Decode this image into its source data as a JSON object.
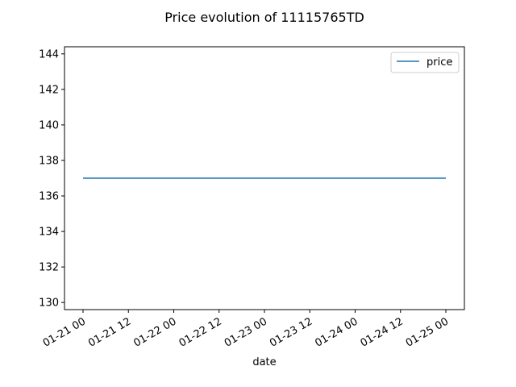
{
  "chart_data": {
    "type": "line",
    "title": "Price evolution of 11115765TD",
    "xlabel": "date",
    "ylabel": "",
    "x": [
      "2024-01-21 00:00",
      "2024-01-25 00:00"
    ],
    "series": [
      {
        "name": "price",
        "values": [
          137,
          137
        ],
        "color": "#1f77b4"
      }
    ],
    "ylim": [
      129.6,
      144.4
    ],
    "yticks": [
      130,
      132,
      134,
      136,
      138,
      140,
      142,
      144
    ],
    "xticks": [
      {
        "x": "2024-01-21 00:00",
        "label": "01-21 00"
      },
      {
        "x": "2024-01-21 12:00",
        "label": "01-21 12"
      },
      {
        "x": "2024-01-22 00:00",
        "label": "01-22 00"
      },
      {
        "x": "2024-01-22 12:00",
        "label": "01-22 12"
      },
      {
        "x": "2024-01-23 00:00",
        "label": "01-23 00"
      },
      {
        "x": "2024-01-23 12:00",
        "label": "01-23 12"
      },
      {
        "x": "2024-01-24 00:00",
        "label": "01-24 00"
      },
      {
        "x": "2024-01-24 12:00",
        "label": "01-24 12"
      },
      {
        "x": "2024-01-25 00:00",
        "label": "01-25 00"
      }
    ],
    "grid": false,
    "legend_position": "top-right"
  }
}
